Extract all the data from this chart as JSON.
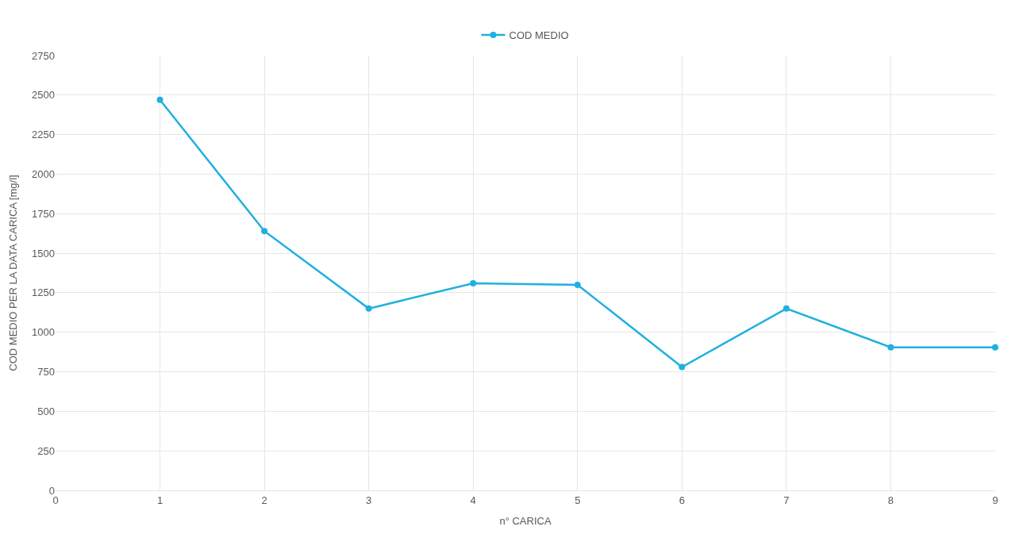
{
  "chart_data": {
    "type": "line",
    "xlabel": "n° CARICA",
    "ylabel": "COD MEDIO PER LA DATA CARICA [mg/l]",
    "x": [
      1,
      2,
      3,
      4,
      5,
      6,
      7,
      8,
      9
    ],
    "series": [
      {
        "name": "COD MEDIO",
        "color": "#1fb0e0",
        "values": [
          2470,
          1640,
          1150,
          1310,
          1300,
          780,
          1150,
          905,
          905
        ]
      }
    ],
    "xlim": [
      0,
      9
    ],
    "xticks": [
      0,
      1,
      2,
      3,
      4,
      5,
      6,
      7,
      8,
      9
    ],
    "ylim": [
      0,
      2750
    ],
    "yticks": [
      0,
      250,
      500,
      750,
      1000,
      1250,
      1500,
      1750,
      2000,
      2250,
      2500,
      2750
    ],
    "grid": true,
    "legend": "top",
    "marker": "circle",
    "line_style": "solid"
  }
}
